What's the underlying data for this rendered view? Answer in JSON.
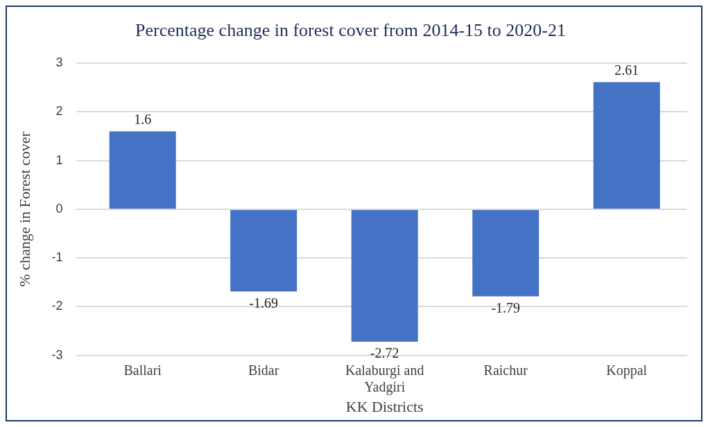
{
  "chart_data": {
    "type": "bar",
    "title": "Percentage change in forest cover from 2014-15 to 2020-21",
    "xlabel": "KK Districts",
    "ylabel": "% change in Forest cover",
    "categories": [
      "Ballari",
      "Bidar",
      "Kalaburgi and Yadgiri",
      "Raichur",
      "Koppal"
    ],
    "values": [
      1.6,
      -1.69,
      -2.72,
      -1.79,
      2.61
    ],
    "color": "#4472c4",
    "ylim": [
      -3,
      3
    ],
    "yticks": [
      -3,
      -2,
      -1,
      0,
      1,
      2,
      3
    ],
    "grid": "y",
    "data_labels": true
  }
}
